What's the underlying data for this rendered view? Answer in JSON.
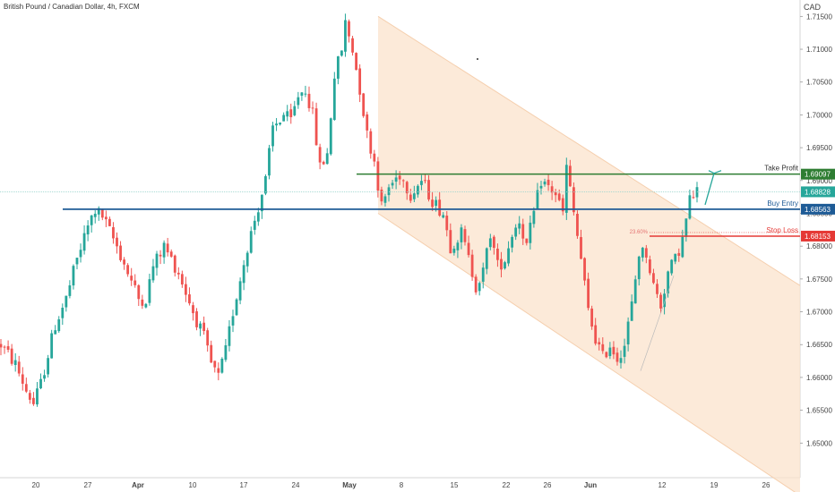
{
  "header": {
    "symbol_title": "British Pound / Canadian Dollar, 4h, FXCM",
    "currency": "CAD"
  },
  "colors": {
    "up": "#26a69a",
    "down": "#ef5350",
    "channel_fill": "#fbe3cc",
    "take_profit": "#2e7d32",
    "buy_entry": "#1e5b96",
    "stop_loss": "#e53935",
    "last_price": "#26a69a",
    "arrow": "#26a69a"
  },
  "chart_data": {
    "type": "candlestick",
    "y_axis": {
      "range": [
        1.645,
        1.7175
      ],
      "ticks": [
        "1.71500",
        "1.71000",
        "1.70500",
        "1.70000",
        "1.69500",
        "1.69000",
        "1.68500",
        "1.68000",
        "1.67500",
        "1.67000",
        "1.66500",
        "1.66000",
        "1.65500",
        "1.65000"
      ],
      "tick_values": [
        1.715,
        1.71,
        1.705,
        1.7,
        1.695,
        1.69,
        1.685,
        1.68,
        1.675,
        1.67,
        1.665,
        1.66,
        1.655,
        1.65
      ]
    },
    "x_axis": {
      "labels": [
        "20",
        "27",
        "Apr",
        "10",
        "17",
        "24",
        "May",
        "8",
        "15",
        "22",
        "26",
        "Jun",
        "12",
        "19",
        "26"
      ],
      "bold": [
        false,
        false,
        true,
        false,
        false,
        false,
        true,
        false,
        false,
        false,
        false,
        true,
        false,
        false,
        false
      ]
    },
    "price_path": [
      [
        0,
        1.665
      ],
      [
        4,
        1.662
      ],
      [
        7,
        1.658
      ],
      [
        9,
        1.656
      ],
      [
        11,
        1.659
      ],
      [
        15,
        1.668
      ],
      [
        18,
        1.672
      ],
      [
        21,
        1.678
      ],
      [
        24,
        1.683
      ],
      [
        26,
        1.6855
      ],
      [
        28,
        1.6845
      ],
      [
        32,
        1.68
      ],
      [
        35,
        1.676
      ],
      [
        38,
        1.672
      ],
      [
        40,
        1.672
      ],
      [
        42,
        1.677
      ],
      [
        45,
        1.68
      ],
      [
        49,
        1.676
      ],
      [
        53,
        1.67
      ],
      [
        56,
        1.666
      ],
      [
        58,
        1.662
      ],
      [
        60,
        1.66
      ],
      [
        62,
        1.664
      ],
      [
        64,
        1.67
      ],
      [
        68,
        1.68
      ],
      [
        71,
        1.686
      ],
      [
        73,
        1.69
      ],
      [
        75,
        1.698
      ],
      [
        78,
        1.7
      ],
      [
        80,
        1.699
      ],
      [
        82,
        1.703
      ],
      [
        84,
        1.704
      ],
      [
        86,
        1.7
      ],
      [
        88,
        1.692
      ],
      [
        90,
        1.694
      ],
      [
        92,
        1.706
      ],
      [
        94,
        1.71
      ],
      [
        95,
        1.714
      ],
      [
        97,
        1.71
      ],
      [
        99,
        1.704
      ],
      [
        101,
        1.697
      ],
      [
        103,
        1.693
      ],
      [
        105,
        1.686
      ],
      [
        107,
        1.689
      ],
      [
        110,
        1.691
      ],
      [
        113,
        1.688
      ],
      [
        116,
        1.69
      ],
      [
        119,
        1.687
      ],
      [
        122,
        1.685
      ],
      [
        124,
        1.68
      ],
      [
        127,
        1.682
      ],
      [
        129,
        1.678
      ],
      [
        131,
        1.674
      ],
      [
        133,
        1.676
      ],
      [
        135,
        1.682
      ],
      [
        137,
        1.677
      ],
      [
        139,
        1.678
      ],
      [
        141,
        1.682
      ],
      [
        143,
        1.684
      ],
      [
        145,
        1.68
      ],
      [
        147,
        1.685
      ],
      [
        149,
        1.69
      ],
      [
        151,
        1.689
      ],
      [
        153,
        1.688
      ],
      [
        155,
        1.685
      ],
      [
        156,
        1.692
      ],
      [
        158,
        1.685
      ],
      [
        160,
        1.678
      ],
      [
        162,
        1.67
      ],
      [
        164,
        1.666
      ],
      [
        166,
        1.663
      ],
      [
        168,
        1.665
      ],
      [
        170,
        1.663
      ],
      [
        172,
        1.665
      ],
      [
        174,
        1.671
      ],
      [
        176,
        1.679
      ],
      [
        178,
        1.679
      ],
      [
        180,
        1.674
      ],
      [
        182,
        1.671
      ],
      [
        184,
        1.676
      ],
      [
        186,
        1.678
      ],
      [
        188,
        1.681
      ],
      [
        190,
        1.687
      ],
      [
        192,
        1.6885
      ]
    ],
    "annotations": {
      "take_profit": {
        "label": "Take Profit",
        "value": 1.69097,
        "value_label": "1.69097"
      },
      "last_price": {
        "value": 1.68828,
        "value_label": "1.68828"
      },
      "buy_entry": {
        "label": "Buy Entry",
        "value": 1.68563,
        "value_label": "1.68563"
      },
      "stop_loss": {
        "label": "Stop Loss",
        "value": 1.68153,
        "value_label": "1.68153"
      },
      "fib_label": "23.60%"
    },
    "channel": {
      "start_date_label": "May",
      "upper_start": 1.715,
      "upper_end": 1.674,
      "lower_start": 1.685,
      "lower_end": 1.642
    }
  }
}
